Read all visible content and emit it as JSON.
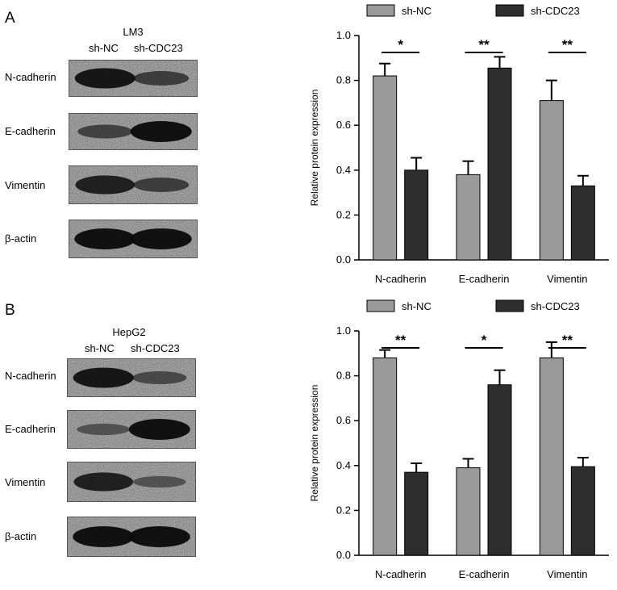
{
  "panels": [
    {
      "letter": "A",
      "cell_line": "LM3",
      "lanes": [
        "sh-NC",
        "sh-CDC23"
      ],
      "blot_rows": [
        {
          "label": "N-cadherin",
          "lane_intensity": [
            0.95,
            0.55
          ]
        },
        {
          "label": "E-cadherin",
          "lane_intensity": [
            0.5,
            1.0
          ]
        },
        {
          "label": "Vimentin",
          "lane_intensity": [
            0.85,
            0.55
          ]
        },
        {
          "label": "β-actin",
          "lane_intensity": [
            1.0,
            1.0
          ]
        }
      ]
    },
    {
      "letter": "B",
      "cell_line": "HepG2",
      "lanes": [
        "sh-NC",
        "sh-CDC23"
      ],
      "blot_rows": [
        {
          "label": "N-cadherin",
          "lane_intensity": [
            0.95,
            0.45
          ]
        },
        {
          "label": "E-cadherin",
          "lane_intensity": [
            0.35,
            1.0
          ]
        },
        {
          "label": "Vimentin",
          "lane_intensity": [
            0.85,
            0.35
          ]
        },
        {
          "label": "β-actin",
          "lane_intensity": [
            1.0,
            1.0
          ]
        }
      ]
    }
  ],
  "colors": {
    "sh_nc": "#9a9a9a",
    "sh_cdc23": "#2e2e2e"
  },
  "chart_data": [
    {
      "type": "bar",
      "categories": [
        "N-cadherin",
        "E-cadherin",
        "Vimentin"
      ],
      "series": [
        {
          "name": "sh-NC",
          "values": [
            0.82,
            0.38,
            0.71
          ],
          "errors": [
            0.055,
            0.06,
            0.09
          ]
        },
        {
          "name": "sh-CDC23",
          "values": [
            0.4,
            0.855,
            0.33
          ],
          "errors": [
            0.055,
            0.05,
            0.045
          ]
        }
      ],
      "significance": [
        "*",
        "**",
        "**"
      ],
      "ylabel": "Relative protein expression",
      "xlabel": "",
      "ylim": [
        0,
        1.0
      ],
      "yticks": [
        "0.0",
        "0.2",
        "0.4",
        "0.6",
        "0.8",
        "1.0"
      ],
      "legend": "top",
      "grid": false
    },
    {
      "type": "bar",
      "categories": [
        "N-cadherin",
        "E-cadherin",
        "Vimentin"
      ],
      "series": [
        {
          "name": "sh-NC",
          "values": [
            0.88,
            0.39,
            0.88
          ],
          "errors": [
            0.035,
            0.04,
            0.07
          ]
        },
        {
          "name": "sh-CDC23",
          "values": [
            0.37,
            0.76,
            0.395
          ],
          "errors": [
            0.04,
            0.065,
            0.04
          ]
        }
      ],
      "significance": [
        "**",
        "*",
        "**"
      ],
      "ylabel": "Relative protein expression",
      "xlabel": "",
      "ylim": [
        0,
        1.0
      ],
      "yticks": [
        "0.0",
        "0.2",
        "0.4",
        "0.6",
        "0.8",
        "1.0"
      ],
      "legend": "top",
      "grid": false
    }
  ]
}
